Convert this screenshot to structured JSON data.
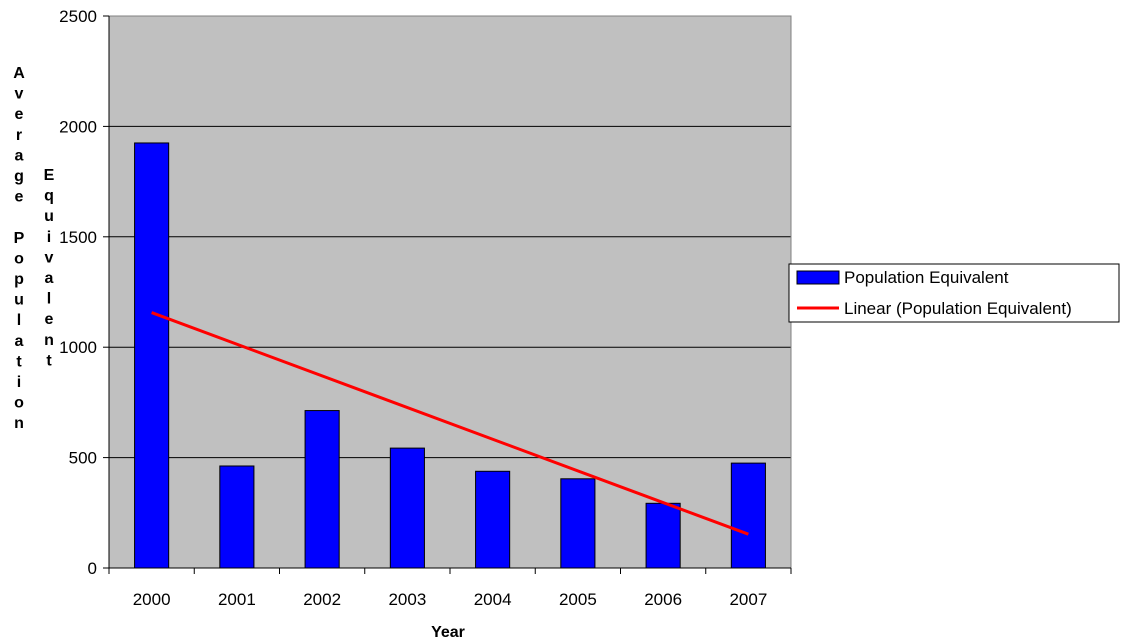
{
  "chart_data": {
    "type": "bar",
    "categories": [
      "2000",
      "2001",
      "2002",
      "2003",
      "2004",
      "2005",
      "2006",
      "2007"
    ],
    "series": [
      {
        "name": "Population Equivalent",
        "type": "bar",
        "values": [
          1925,
          462,
          713,
          543,
          438,
          404,
          293,
          475
        ],
        "color": "#0000ff"
      },
      {
        "name": "Linear (Population Equivalent)",
        "type": "trendline",
        "start": 1157,
        "end": 153,
        "color": "#ff0000"
      }
    ],
    "xlabel": "Year",
    "ylabel": "Average Population Equivalent",
    "ylabel_lines": [
      "Average Population",
      "Equivalent"
    ],
    "ylim": [
      0,
      2500
    ],
    "yticks": [
      0,
      500,
      1000,
      1500,
      2000,
      2500
    ],
    "grid": true,
    "plot_background": "#c0c0c0",
    "legend_position": "right"
  }
}
